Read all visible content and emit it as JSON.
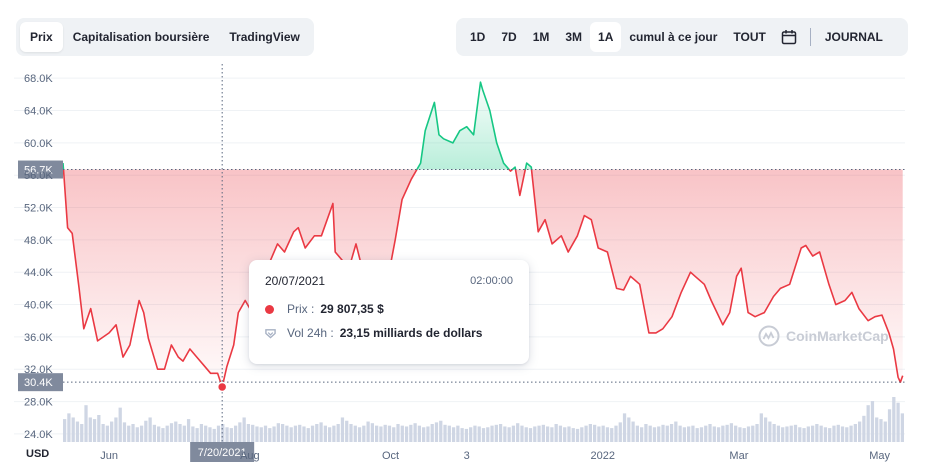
{
  "tabs": [
    {
      "label": "Prix",
      "active": true
    },
    {
      "label": "Capitalisation boursière",
      "active": false
    },
    {
      "label": "TradingView",
      "active": false
    }
  ],
  "ranges": [
    {
      "label": "1D",
      "active": false
    },
    {
      "label": "7D",
      "active": false
    },
    {
      "label": "1M",
      "active": false
    },
    {
      "label": "3M",
      "active": false
    },
    {
      "label": "1A",
      "active": true
    },
    {
      "label": "cumul à ce jour",
      "active": false
    },
    {
      "label": "TOUT",
      "active": false
    }
  ],
  "calendar_icon": "calendar-icon",
  "journal_label": "JOURNAL",
  "currency_label": "USD",
  "watermark_text": "CoinMarketCap",
  "tooltip": {
    "date": "20/07/2021",
    "time": "02:00:00",
    "price_label": "Prix :",
    "price_value": "29 807,35 $",
    "volume_label": "Vol 24h :",
    "volume_value": "23,15 milliards de dollars"
  },
  "colors": {
    "down": "#ea3943",
    "up": "#16c784",
    "grid": "#eff2f5",
    "axis_text": "#58667e",
    "badge_bg": "#808a9d",
    "volume": "#cfd6e4"
  },
  "chart_data": {
    "type": "area",
    "ylim": [
      23000,
      70000
    ],
    "yticks": [
      "68.0K",
      "64.0K",
      "60.0K",
      "56.0K",
      "52.0K",
      "48.0K",
      "44.0K",
      "40.0K",
      "36.0K",
      "32.0K",
      "28.0K",
      "24.0K"
    ],
    "ytick_values": [
      68000,
      64000,
      60000,
      56000,
      52000,
      48000,
      44000,
      40000,
      36000,
      32000,
      28000,
      24000
    ],
    "xticks": [
      {
        "label": "Jun",
        "date": "2021-06-01"
      },
      {
        "label": "Aug",
        "date": "2021-08-01"
      },
      {
        "label": "Oct",
        "date": "2021-10-01"
      },
      {
        "label": "3",
        "date": "2021-11-03"
      },
      {
        "label": "2022",
        "date": "2022-01-01"
      },
      {
        "label": "Mar",
        "date": "2022-03-01"
      },
      {
        "label": "May",
        "date": "2022-05-01"
      }
    ],
    "x_start": "2021-05-12",
    "x_end": "2022-05-12",
    "baseline": {
      "value": 56700,
      "label": "56.7K"
    },
    "current": {
      "value": 30400,
      "label": "30.4K"
    },
    "cursor": {
      "date": "2021-07-20",
      "label": "7/20/2021",
      "value": 29807.35
    },
    "series": [
      {
        "values": [
          [
            "2021-05-12",
            57500
          ],
          [
            "2021-05-14",
            49500
          ],
          [
            "2021-05-16",
            48800
          ],
          [
            "2021-05-19",
            42000
          ],
          [
            "2021-05-21",
            37000
          ],
          [
            "2021-05-24",
            39500
          ],
          [
            "2021-05-27",
            35500
          ],
          [
            "2021-06-01",
            36500
          ],
          [
            "2021-06-04",
            37500
          ],
          [
            "2021-06-07",
            33500
          ],
          [
            "2021-06-10",
            35000
          ],
          [
            "2021-06-14",
            40500
          ],
          [
            "2021-06-16",
            39000
          ],
          [
            "2021-06-18",
            35800
          ],
          [
            "2021-06-22",
            32000
          ],
          [
            "2021-06-25",
            32000
          ],
          [
            "2021-06-28",
            35000
          ],
          [
            "2021-07-01",
            33500
          ],
          [
            "2021-07-03",
            33000
          ],
          [
            "2021-07-06",
            34500
          ],
          [
            "2021-07-09",
            33500
          ],
          [
            "2021-07-12",
            32500
          ],
          [
            "2021-07-15",
            31500
          ],
          [
            "2021-07-18",
            31500
          ],
          [
            "2021-07-20",
            29807
          ],
          [
            "2021-07-22",
            32300
          ],
          [
            "2021-07-25",
            35000
          ],
          [
            "2021-07-27",
            39000
          ],
          [
            "2021-07-30",
            40500
          ],
          [
            "2021-08-02",
            39000
          ],
          [
            "2021-08-05",
            41000
          ],
          [
            "2021-08-07",
            44500
          ],
          [
            "2021-08-10",
            45500
          ],
          [
            "2021-08-13",
            47500
          ],
          [
            "2021-08-16",
            46500
          ],
          [
            "2021-08-20",
            49000
          ],
          [
            "2021-08-22",
            49500
          ],
          [
            "2021-08-25",
            47000
          ],
          [
            "2021-08-29",
            48500
          ],
          [
            "2021-09-01",
            48500
          ],
          [
            "2021-09-06",
            52500
          ],
          [
            "2021-09-07",
            46500
          ],
          [
            "2021-09-10",
            45500
          ],
          [
            "2021-09-13",
            44500
          ],
          [
            "2021-09-16",
            47500
          ],
          [
            "2021-09-20",
            43000
          ],
          [
            "2021-09-22",
            42000
          ],
          [
            "2021-09-25",
            42500
          ],
          [
            "2021-09-28",
            41500
          ],
          [
            "2021-09-30",
            43500
          ],
          [
            "2021-10-03",
            48000
          ],
          [
            "2021-10-06",
            53000
          ],
          [
            "2021-10-10",
            55500
          ],
          [
            "2021-10-14",
            57500
          ],
          [
            "2021-10-16",
            61500
          ],
          [
            "2021-10-20",
            65000
          ],
          [
            "2021-10-22",
            61000
          ],
          [
            "2021-10-24",
            60500
          ],
          [
            "2021-10-28",
            60000
          ],
          [
            "2021-10-31",
            61500
          ],
          [
            "2021-11-03",
            62000
          ],
          [
            "2021-11-06",
            61000
          ],
          [
            "2021-11-09",
            67500
          ],
          [
            "2021-11-10",
            66500
          ],
          [
            "2021-11-13",
            64000
          ],
          [
            "2021-11-16",
            60000
          ],
          [
            "2021-11-19",
            57500
          ],
          [
            "2021-11-22",
            56500
          ],
          [
            "2021-11-24",
            57000
          ],
          [
            "2021-11-26",
            53500
          ],
          [
            "2021-11-29",
            57500
          ],
          [
            "2021-12-01",
            57000
          ],
          [
            "2021-12-04",
            49000
          ],
          [
            "2021-12-07",
            50500
          ],
          [
            "2021-12-10",
            47500
          ],
          [
            "2021-12-14",
            48500
          ],
          [
            "2021-12-17",
            46500
          ],
          [
            "2021-12-21",
            48500
          ],
          [
            "2021-12-24",
            51000
          ],
          [
            "2021-12-27",
            50500
          ],
          [
            "2021-12-30",
            47000
          ],
          [
            "2022-01-03",
            46500
          ],
          [
            "2022-01-07",
            42000
          ],
          [
            "2022-01-10",
            41800
          ],
          [
            "2022-01-13",
            43500
          ],
          [
            "2022-01-17",
            42500
          ],
          [
            "2022-01-21",
            36500
          ],
          [
            "2022-01-24",
            36500
          ],
          [
            "2022-01-27",
            37000
          ],
          [
            "2022-01-31",
            38500
          ],
          [
            "2022-02-04",
            41500
          ],
          [
            "2022-02-08",
            44000
          ],
          [
            "2022-02-10",
            43500
          ],
          [
            "2022-02-14",
            42500
          ],
          [
            "2022-02-17",
            40500
          ],
          [
            "2022-02-22",
            37500
          ],
          [
            "2022-02-25",
            39000
          ],
          [
            "2022-02-28",
            43500
          ],
          [
            "2022-03-02",
            44500
          ],
          [
            "2022-03-05",
            39000
          ],
          [
            "2022-03-08",
            38500
          ],
          [
            "2022-03-12",
            39000
          ],
          [
            "2022-03-16",
            41000
          ],
          [
            "2022-03-19",
            42000
          ],
          [
            "2022-03-23",
            42500
          ],
          [
            "2022-03-28",
            47000
          ],
          [
            "2022-03-30",
            47300
          ],
          [
            "2022-04-02",
            46000
          ],
          [
            "2022-04-05",
            46500
          ],
          [
            "2022-04-09",
            42500
          ],
          [
            "2022-04-12",
            40000
          ],
          [
            "2022-04-16",
            40500
          ],
          [
            "2022-04-19",
            41500
          ],
          [
            "2022-04-22",
            39500
          ],
          [
            "2022-04-26",
            38000
          ],
          [
            "2022-04-29",
            38500
          ],
          [
            "2022-05-02",
            38700
          ],
          [
            "2022-05-05",
            36500
          ],
          [
            "2022-05-07",
            34500
          ],
          [
            "2022-05-09",
            31000
          ],
          [
            "2022-05-10",
            30400
          ],
          [
            "2022-05-11",
            31200
          ]
        ]
      }
    ],
    "volume_scale": "relative",
    "volume_series": [
      0.28,
      0.35,
      0.3,
      0.25,
      0.22,
      0.45,
      0.3,
      0.28,
      0.33,
      0.22,
      0.2,
      0.25,
      0.3,
      0.42,
      0.24,
      0.2,
      0.22,
      0.18,
      0.2,
      0.26,
      0.3,
      0.21,
      0.19,
      0.17,
      0.2,
      0.23,
      0.25,
      0.22,
      0.2,
      0.28,
      0.19,
      0.17,
      0.22,
      0.2,
      0.18,
      0.16,
      0.2,
      0.22,
      0.18,
      0.17,
      0.2,
      0.24,
      0.3,
      0.22,
      0.21,
      0.19,
      0.18,
      0.2,
      0.17,
      0.19,
      0.23,
      0.22,
      0.2,
      0.18,
      0.2,
      0.21,
      0.19,
      0.17,
      0.2,
      0.22,
      0.24,
      0.2,
      0.18,
      0.2,
      0.22,
      0.3,
      0.26,
      0.22,
      0.2,
      0.18,
      0.2,
      0.25,
      0.23,
      0.2,
      0.19,
      0.21,
      0.2,
      0.18,
      0.22,
      0.2,
      0.19,
      0.21,
      0.23,
      0.2,
      0.18,
      0.19,
      0.22,
      0.24,
      0.26,
      0.21,
      0.2,
      0.18,
      0.2,
      0.17,
      0.16,
      0.18,
      0.2,
      0.19,
      0.17,
      0.18,
      0.2,
      0.21,
      0.22,
      0.19,
      0.18,
      0.2,
      0.23,
      0.2,
      0.18,
      0.17,
      0.19,
      0.2,
      0.21,
      0.19,
      0.18,
      0.22,
      0.2,
      0.18,
      0.19,
      0.17,
      0.16,
      0.18,
      0.2,
      0.22,
      0.21,
      0.19,
      0.2,
      0.18,
      0.17,
      0.2,
      0.24,
      0.35,
      0.3,
      0.25,
      0.2,
      0.18,
      0.22,
      0.2,
      0.18,
      0.19,
      0.21,
      0.2,
      0.22,
      0.25,
      0.2,
      0.18,
      0.19,
      0.2,
      0.17,
      0.18,
      0.2,
      0.22,
      0.19,
      0.18,
      0.2,
      0.21,
      0.23,
      0.2,
      0.18,
      0.17,
      0.19,
      0.2,
      0.22,
      0.35,
      0.3,
      0.25,
      0.22,
      0.2,
      0.18,
      0.19,
      0.2,
      0.21,
      0.18,
      0.17,
      0.19,
      0.2,
      0.22,
      0.2,
      0.18,
      0.17,
      0.2,
      0.21,
      0.19,
      0.18,
      0.2,
      0.22,
      0.25,
      0.32,
      0.45,
      0.5,
      0.3,
      0.28,
      0.25,
      0.4,
      0.55,
      0.48,
      0.35
    ]
  }
}
